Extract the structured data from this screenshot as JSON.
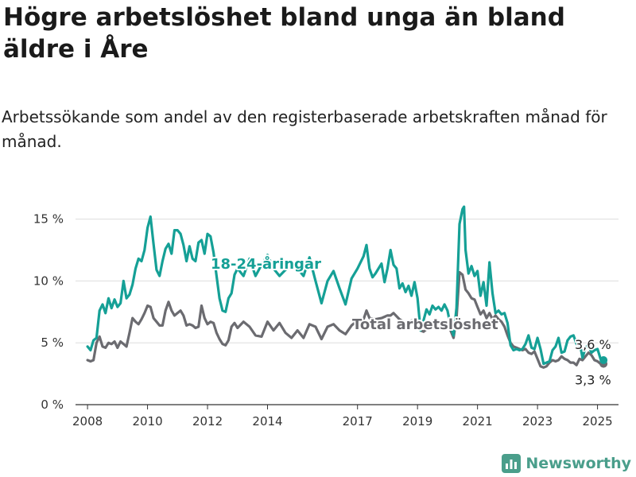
{
  "title": "Högre arbetslöshet bland unga än bland äldre i Åre",
  "subtitle": "Arbetssökande som andel av den registerbaserade arbetskraften månad för månad.",
  "brand": {
    "name": "Newsworthy",
    "icon": "bar-chart-icon"
  },
  "chart_data": {
    "type": "line",
    "ylim": [
      0,
      16
    ],
    "xlim": [
      2007.6,
      2025.7
    ],
    "grid": true,
    "y_ticks": [
      {
        "value": 0,
        "label": "0 %"
      },
      {
        "value": 5,
        "label": "5 %"
      },
      {
        "value": 10,
        "label": "10 %"
      },
      {
        "value": 15,
        "label": "15 %"
      }
    ],
    "x_ticks": [
      {
        "value": 2008,
        "label": "2008"
      },
      {
        "value": 2010,
        "label": "2010"
      },
      {
        "value": 2012,
        "label": "2012"
      },
      {
        "value": 2014,
        "label": "2014"
      },
      {
        "value": 2017,
        "label": "2017"
      },
      {
        "value": 2019,
        "label": "2019"
      },
      {
        "value": 2021,
        "label": "2021"
      },
      {
        "value": 2023,
        "label": "2023"
      },
      {
        "value": 2025,
        "label": "2025"
      }
    ],
    "series": [
      {
        "name": "18-24-åringar",
        "color": "#15a096",
        "end_label": "3,6 %",
        "points": [
          [
            2008.0,
            4.7
          ],
          [
            2008.1,
            4.4
          ],
          [
            2008.2,
            5.2
          ],
          [
            2008.3,
            5.4
          ],
          [
            2008.4,
            7.6
          ],
          [
            2008.5,
            8.1
          ],
          [
            2008.6,
            7.4
          ],
          [
            2008.7,
            8.6
          ],
          [
            2008.8,
            7.8
          ],
          [
            2008.9,
            8.5
          ],
          [
            2009.0,
            7.9
          ],
          [
            2009.1,
            8.2
          ],
          [
            2009.2,
            10.0
          ],
          [
            2009.3,
            8.6
          ],
          [
            2009.4,
            8.9
          ],
          [
            2009.5,
            9.7
          ],
          [
            2009.6,
            11.0
          ],
          [
            2009.7,
            11.8
          ],
          [
            2009.8,
            11.6
          ],
          [
            2009.9,
            12.5
          ],
          [
            2010.0,
            14.3
          ],
          [
            2010.1,
            15.2
          ],
          [
            2010.2,
            13.0
          ],
          [
            2010.3,
            10.9
          ],
          [
            2010.4,
            10.4
          ],
          [
            2010.5,
            11.6
          ],
          [
            2010.6,
            12.6
          ],
          [
            2010.7,
            13.0
          ],
          [
            2010.8,
            12.2
          ],
          [
            2010.9,
            14.1
          ],
          [
            2011.0,
            14.1
          ],
          [
            2011.1,
            13.8
          ],
          [
            2011.2,
            12.9
          ],
          [
            2011.3,
            11.6
          ],
          [
            2011.4,
            12.8
          ],
          [
            2011.5,
            11.8
          ],
          [
            2011.6,
            11.6
          ],
          [
            2011.7,
            13.1
          ],
          [
            2011.8,
            13.3
          ],
          [
            2011.9,
            12.2
          ],
          [
            2012.0,
            13.8
          ],
          [
            2012.1,
            13.6
          ],
          [
            2012.2,
            12.3
          ],
          [
            2012.3,
            10.4
          ],
          [
            2012.4,
            8.6
          ],
          [
            2012.5,
            7.6
          ],
          [
            2012.6,
            7.5
          ],
          [
            2012.7,
            8.6
          ],
          [
            2012.8,
            9.0
          ],
          [
            2012.9,
            10.5
          ],
          [
            2013.0,
            11.0
          ],
          [
            2013.2,
            10.4
          ],
          [
            2013.4,
            11.8
          ],
          [
            2013.6,
            10.4
          ],
          [
            2013.8,
            11.3
          ],
          [
            2014.0,
            12.1
          ],
          [
            2014.2,
            11.0
          ],
          [
            2014.4,
            10.4
          ],
          [
            2014.6,
            10.9
          ],
          [
            2014.8,
            11.2
          ],
          [
            2015.0,
            11.0
          ],
          [
            2015.2,
            10.4
          ],
          [
            2015.4,
            11.9
          ],
          [
            2015.6,
            10.0
          ],
          [
            2015.8,
            8.2
          ],
          [
            2016.0,
            10.0
          ],
          [
            2016.2,
            10.8
          ],
          [
            2016.4,
            9.4
          ],
          [
            2016.6,
            8.1
          ],
          [
            2016.8,
            10.2
          ],
          [
            2017.0,
            11.0
          ],
          [
            2017.2,
            12.0
          ],
          [
            2017.3,
            12.9
          ],
          [
            2017.4,
            11.0
          ],
          [
            2017.5,
            10.3
          ],
          [
            2017.6,
            10.6
          ],
          [
            2017.8,
            11.4
          ],
          [
            2017.9,
            9.9
          ],
          [
            2018.0,
            11.0
          ],
          [
            2018.1,
            12.5
          ],
          [
            2018.2,
            11.3
          ],
          [
            2018.3,
            11.0
          ],
          [
            2018.4,
            9.4
          ],
          [
            2018.5,
            9.8
          ],
          [
            2018.6,
            9.1
          ],
          [
            2018.7,
            9.6
          ],
          [
            2018.8,
            8.8
          ],
          [
            2018.9,
            9.9
          ],
          [
            2019.0,
            8.6
          ],
          [
            2019.1,
            6.0
          ],
          [
            2019.2,
            6.8
          ],
          [
            2019.3,
            7.7
          ],
          [
            2019.4,
            7.3
          ],
          [
            2019.5,
            8.0
          ],
          [
            2019.6,
            7.7
          ],
          [
            2019.7,
            7.9
          ],
          [
            2019.8,
            7.6
          ],
          [
            2019.9,
            8.1
          ],
          [
            2020.0,
            7.6
          ],
          [
            2020.1,
            6.4
          ],
          [
            2020.2,
            5.6
          ],
          [
            2020.3,
            7.8
          ],
          [
            2020.4,
            14.6
          ],
          [
            2020.5,
            15.8
          ],
          [
            2020.55,
            16.0
          ],
          [
            2020.6,
            12.5
          ],
          [
            2020.7,
            10.6
          ],
          [
            2020.8,
            11.2
          ],
          [
            2020.9,
            10.4
          ],
          [
            2021.0,
            10.8
          ],
          [
            2021.1,
            8.8
          ],
          [
            2021.2,
            9.9
          ],
          [
            2021.3,
            8.0
          ],
          [
            2021.4,
            11.5
          ],
          [
            2021.5,
            9.0
          ],
          [
            2021.6,
            7.4
          ],
          [
            2021.7,
            7.6
          ],
          [
            2021.8,
            7.3
          ],
          [
            2021.9,
            7.4
          ],
          [
            2022.0,
            6.6
          ],
          [
            2022.1,
            4.8
          ],
          [
            2022.2,
            4.4
          ],
          [
            2022.3,
            4.5
          ],
          [
            2022.4,
            4.4
          ],
          [
            2022.5,
            4.5
          ],
          [
            2022.6,
            4.9
          ],
          [
            2022.7,
            5.6
          ],
          [
            2022.8,
            4.6
          ],
          [
            2022.9,
            4.5
          ],
          [
            2023.0,
            5.4
          ],
          [
            2023.1,
            4.5
          ],
          [
            2023.2,
            3.3
          ],
          [
            2023.3,
            3.4
          ],
          [
            2023.4,
            3.5
          ],
          [
            2023.5,
            4.4
          ],
          [
            2023.6,
            4.7
          ],
          [
            2023.7,
            5.4
          ],
          [
            2023.8,
            4.2
          ],
          [
            2023.9,
            4.3
          ],
          [
            2024.0,
            5.2
          ],
          [
            2024.1,
            5.5
          ],
          [
            2024.2,
            5.6
          ],
          [
            2024.3,
            4.9
          ],
          [
            2024.4,
            5.1
          ],
          [
            2024.5,
            3.8
          ],
          [
            2024.6,
            4.6
          ],
          [
            2024.7,
            4.8
          ],
          [
            2024.8,
            4.2
          ],
          [
            2024.9,
            4.4
          ],
          [
            2025.0,
            4.5
          ],
          [
            2025.1,
            3.7
          ],
          [
            2025.2,
            3.6
          ]
        ]
      },
      {
        "name": "Total arbetslöshet",
        "color": "#6b6b70",
        "end_label": "3,3 %",
        "points": [
          [
            2008.0,
            3.6
          ],
          [
            2008.1,
            3.5
          ],
          [
            2008.2,
            3.6
          ],
          [
            2008.3,
            5.0
          ],
          [
            2008.4,
            5.5
          ],
          [
            2008.5,
            4.7
          ],
          [
            2008.6,
            4.6
          ],
          [
            2008.7,
            5.0
          ],
          [
            2008.8,
            4.9
          ],
          [
            2008.9,
            5.1
          ],
          [
            2009.0,
            4.6
          ],
          [
            2009.1,
            5.1
          ],
          [
            2009.2,
            4.9
          ],
          [
            2009.3,
            4.7
          ],
          [
            2009.4,
            5.8
          ],
          [
            2009.5,
            7.0
          ],
          [
            2009.6,
            6.7
          ],
          [
            2009.7,
            6.5
          ],
          [
            2009.8,
            6.9
          ],
          [
            2009.9,
            7.4
          ],
          [
            2010.0,
            8.0
          ],
          [
            2010.1,
            7.9
          ],
          [
            2010.2,
            7.0
          ],
          [
            2010.3,
            6.7
          ],
          [
            2010.4,
            6.4
          ],
          [
            2010.5,
            6.4
          ],
          [
            2010.6,
            7.6
          ],
          [
            2010.7,
            8.3
          ],
          [
            2010.8,
            7.6
          ],
          [
            2010.9,
            7.2
          ],
          [
            2011.0,
            7.4
          ],
          [
            2011.1,
            7.6
          ],
          [
            2011.2,
            7.2
          ],
          [
            2011.3,
            6.4
          ],
          [
            2011.4,
            6.5
          ],
          [
            2011.5,
            6.4
          ],
          [
            2011.6,
            6.2
          ],
          [
            2011.7,
            6.3
          ],
          [
            2011.8,
            8.0
          ],
          [
            2011.9,
            7.0
          ],
          [
            2012.0,
            6.5
          ],
          [
            2012.1,
            6.7
          ],
          [
            2012.2,
            6.6
          ],
          [
            2012.3,
            5.8
          ],
          [
            2012.4,
            5.3
          ],
          [
            2012.5,
            4.9
          ],
          [
            2012.6,
            4.8
          ],
          [
            2012.7,
            5.2
          ],
          [
            2012.8,
            6.3
          ],
          [
            2012.9,
            6.6
          ],
          [
            2013.0,
            6.2
          ],
          [
            2013.2,
            6.7
          ],
          [
            2013.4,
            6.3
          ],
          [
            2013.6,
            5.6
          ],
          [
            2013.8,
            5.5
          ],
          [
            2014.0,
            6.7
          ],
          [
            2014.2,
            6.0
          ],
          [
            2014.4,
            6.6
          ],
          [
            2014.6,
            5.8
          ],
          [
            2014.8,
            5.4
          ],
          [
            2015.0,
            6.0
          ],
          [
            2015.2,
            5.4
          ],
          [
            2015.4,
            6.5
          ],
          [
            2015.6,
            6.3
          ],
          [
            2015.8,
            5.3
          ],
          [
            2016.0,
            6.3
          ],
          [
            2016.2,
            6.5
          ],
          [
            2016.4,
            6.0
          ],
          [
            2016.6,
            5.7
          ],
          [
            2016.8,
            6.4
          ],
          [
            2017.0,
            6.8
          ],
          [
            2017.2,
            6.9
          ],
          [
            2017.3,
            7.6
          ],
          [
            2017.4,
            7.0
          ],
          [
            2017.6,
            6.9
          ],
          [
            2017.8,
            7.0
          ],
          [
            2018.0,
            7.2
          ],
          [
            2018.1,
            7.2
          ],
          [
            2018.2,
            7.4
          ],
          [
            2018.4,
            6.9
          ],
          [
            2018.6,
            6.6
          ],
          [
            2018.8,
            6.8
          ],
          [
            2019.0,
            6.6
          ],
          [
            2019.1,
            6.0
          ],
          [
            2019.2,
            5.9
          ],
          [
            2019.4,
            6.3
          ],
          [
            2019.6,
            6.8
          ],
          [
            2019.8,
            6.6
          ],
          [
            2020.0,
            6.6
          ],
          [
            2020.1,
            6.0
          ],
          [
            2020.2,
            5.4
          ],
          [
            2020.3,
            7.0
          ],
          [
            2020.4,
            10.7
          ],
          [
            2020.5,
            10.5
          ],
          [
            2020.6,
            9.3
          ],
          [
            2020.7,
            9.0
          ],
          [
            2020.8,
            8.6
          ],
          [
            2020.9,
            8.5
          ],
          [
            2021.0,
            7.9
          ],
          [
            2021.1,
            7.3
          ],
          [
            2021.2,
            7.6
          ],
          [
            2021.3,
            7.0
          ],
          [
            2021.4,
            7.4
          ],
          [
            2021.5,
            6.9
          ],
          [
            2021.6,
            7.2
          ],
          [
            2021.7,
            6.9
          ],
          [
            2021.8,
            6.7
          ],
          [
            2021.9,
            6.3
          ],
          [
            2022.0,
            5.6
          ],
          [
            2022.1,
            5.0
          ],
          [
            2022.2,
            4.7
          ],
          [
            2022.3,
            4.6
          ],
          [
            2022.4,
            4.5
          ],
          [
            2022.5,
            4.4
          ],
          [
            2022.6,
            4.5
          ],
          [
            2022.7,
            4.2
          ],
          [
            2022.8,
            4.1
          ],
          [
            2022.9,
            4.3
          ],
          [
            2023.0,
            3.7
          ],
          [
            2023.1,
            3.1
          ],
          [
            2023.2,
            3.0
          ],
          [
            2023.3,
            3.1
          ],
          [
            2023.4,
            3.4
          ],
          [
            2023.5,
            3.6
          ],
          [
            2023.6,
            3.5
          ],
          [
            2023.7,
            3.6
          ],
          [
            2023.8,
            3.9
          ],
          [
            2023.9,
            3.7
          ],
          [
            2024.0,
            3.6
          ],
          [
            2024.1,
            3.4
          ],
          [
            2024.2,
            3.4
          ],
          [
            2024.3,
            3.2
          ],
          [
            2024.4,
            3.7
          ],
          [
            2024.5,
            3.6
          ],
          [
            2024.6,
            3.9
          ],
          [
            2024.7,
            4.2
          ],
          [
            2024.8,
            4.0
          ],
          [
            2024.9,
            3.6
          ],
          [
            2025.0,
            3.5
          ],
          [
            2025.1,
            3.3
          ],
          [
            2025.2,
            3.3
          ]
        ]
      }
    ]
  }
}
